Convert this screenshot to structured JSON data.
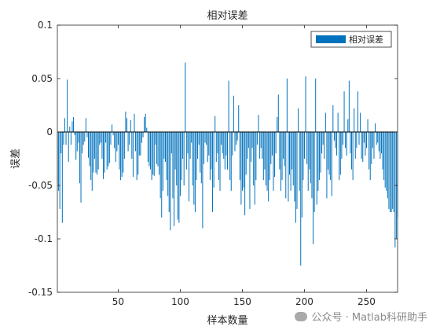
{
  "chart_data": {
    "type": "bar",
    "title": "相对误差",
    "xlabel": "样本数量",
    "ylabel": "误差",
    "xlim": [
      1,
      275
    ],
    "ylim": [
      -0.15,
      0.1
    ],
    "xticks": [
      50,
      100,
      150,
      200,
      250
    ],
    "yticks": [
      0.1,
      0.05,
      0,
      -0.05,
      -0.1,
      -0.15
    ],
    "legend_position": "top-right",
    "grid": false,
    "series": [
      {
        "name": "相对误差",
        "color": "#0072BD",
        "values": [
          -0.048,
          -0.055,
          -0.072,
          -0.02,
          -0.085,
          -0.012,
          0.013,
          -0.012,
          0.049,
          -0.028,
          0.005,
          -0.012,
          0.01,
          0.014,
          -0.003,
          -0.026,
          -0.018,
          -0.01,
          -0.048,
          -0.066,
          -0.02,
          -0.012,
          -0.009,
          0.013,
          -0.005,
          -0.024,
          -0.032,
          -0.045,
          -0.055,
          -0.038,
          -0.025,
          -0.038,
          -0.04,
          -0.035,
          -0.012,
          -0.01,
          -0.025,
          -0.044,
          -0.038,
          -0.01,
          -0.035,
          -0.032,
          -0.029,
          -0.012,
          0.007,
          -0.003,
          -0.015,
          -0.028,
          -0.018,
          -0.012,
          -0.035,
          -0.045,
          -0.042,
          -0.038,
          -0.025,
          0.019,
          0.013,
          -0.018,
          -0.012,
          0.011,
          -0.025,
          -0.042,
          0.017,
          -0.018,
          -0.045,
          -0.04,
          -0.022,
          -0.022,
          -0.01,
          -0.005,
          0.014,
          0.017,
          0.004,
          -0.028,
          -0.032,
          -0.035,
          -0.045,
          -0.04,
          -0.041,
          -0.012,
          -0.03,
          -0.032,
          -0.04,
          -0.062,
          -0.08,
          -0.055,
          -0.025,
          -0.028,
          -0.045,
          -0.06,
          -0.075,
          -0.092,
          -0.02,
          -0.062,
          -0.088,
          -0.035,
          -0.05,
          -0.082,
          -0.085,
          -0.06,
          -0.045,
          -0.025,
          -0.05,
          0.065,
          -0.035,
          -0.02,
          -0.065,
          -0.025,
          -0.01,
          -0.05,
          -0.068,
          -0.075,
          -0.045,
          -0.025,
          -0.012,
          -0.038,
          -0.048,
          -0.09,
          -0.03,
          -0.01,
          -0.012,
          -0.028,
          -0.022,
          -0.045,
          -0.035,
          -0.075,
          -0.052,
          0.015,
          -0.028,
          -0.02,
          -0.045,
          -0.055,
          -0.012,
          -0.02,
          -0.025,
          -0.035,
          -0.022,
          -0.035,
          0.048,
          -0.045,
          -0.055,
          -0.022,
          0.034,
          -0.018,
          -0.012,
          -0.008,
          0.025,
          -0.045,
          -0.068,
          -0.055,
          -0.052,
          -0.078,
          -0.04,
          -0.025,
          -0.015,
          -0.072,
          -0.028,
          -0.015,
          -0.05,
          -0.068,
          -0.045,
          -0.012,
          0.016,
          -0.025,
          -0.015,
          -0.025,
          -0.045,
          -0.035,
          -0.05,
          -0.055,
          -0.065,
          -0.045,
          -0.03,
          -0.022,
          -0.055,
          -0.042,
          -0.02,
          0.014,
          0.035,
          -0.035,
          -0.055,
          -0.045,
          -0.025,
          -0.032,
          -0.062,
          0.05,
          -0.065,
          -0.04,
          -0.055,
          -0.035,
          -0.05,
          -0.065,
          -0.085,
          -0.072,
          0.022,
          -0.055,
          -0.125,
          -0.08,
          -0.045,
          -0.025,
          0.052,
          -0.03,
          -0.055,
          -0.035,
          -0.048,
          -0.062,
          -0.105,
          -0.075,
          0.05,
          -0.068,
          -0.055,
          -0.045,
          -0.038,
          -0.02,
          -0.012,
          -0.025,
          0.018,
          -0.062,
          -0.035,
          -0.04,
          -0.045,
          -0.06,
          0.025,
          -0.008,
          -0.015,
          -0.022,
          0.018,
          -0.045,
          -0.04,
          -0.025,
          -0.012,
          0.038,
          -0.015,
          -0.022,
          0.012,
          0.048,
          -0.02,
          -0.035,
          -0.045,
          0.022,
          -0.025,
          -0.015,
          0.038,
          -0.012,
          0.018,
          -0.025,
          -0.028,
          -0.01,
          -0.022,
          -0.015,
          0.012,
          -0.035,
          -0.045,
          -0.03,
          -0.015,
          -0.025,
          0.008,
          -0.012,
          -0.01,
          -0.018,
          -0.025,
          -0.02,
          -0.035,
          -0.045,
          -0.052,
          -0.055,
          -0.062,
          -0.072,
          -0.075,
          -0.075,
          -0.072,
          -0.075,
          -0.108,
          -0.1,
          -0.08
        ]
      }
    ]
  },
  "watermark": {
    "icon": "wechat-icon",
    "text": "公众号 · Matlab科研助手"
  }
}
